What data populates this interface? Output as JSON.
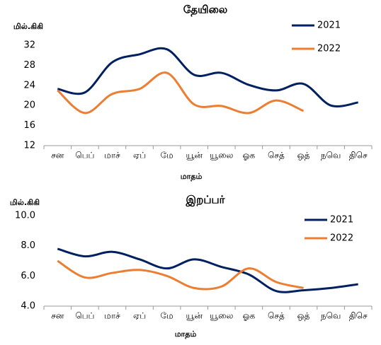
{
  "chart_data": [
    {
      "type": "line",
      "title": "தேயிலை",
      "y_label": "மில்.கிகி",
      "x_label": "மாதம்",
      "categories": [
        "சன",
        "பெப்",
        "மாச்",
        "ஏப்",
        "மே",
        "யூன்",
        "யூலை",
        "ஓக",
        "செத்",
        "ஒத்",
        "நவெ",
        "திசெ"
      ],
      "series": [
        {
          "name": "2021",
          "color": "#002060",
          "values": [
            23.3,
            22.6,
            28.6,
            30.2,
            31.2,
            26.1,
            26.5,
            24.1,
            23.0,
            24.3,
            20.0,
            20.6
          ]
        },
        {
          "name": "2022",
          "color": "#ed7d31",
          "values": [
            23.0,
            18.5,
            22.3,
            23.3,
            26.5,
            20.2,
            19.9,
            18.5,
            21.0,
            18.9,
            null,
            null
          ]
        }
      ],
      "ylim": [
        12,
        32
      ],
      "yticks": [
        12,
        16,
        20,
        24,
        28,
        32
      ],
      "grid": false,
      "legend": "top-right"
    },
    {
      "type": "line",
      "title": "இறப்பர்",
      "y_label": "மில்.கிகி",
      "x_label": "மாதம்",
      "categories": [
        "சன",
        "பெப்",
        "மாச்",
        "ஏப்",
        "மே",
        "யூன்",
        "யூலை",
        "ஓக",
        "செத்",
        "ஒத்",
        "நவெ",
        "திசெ"
      ],
      "series": [
        {
          "name": "2021",
          "color": "#002060",
          "values": [
            7.8,
            7.3,
            7.6,
            7.1,
            6.5,
            7.1,
            6.6,
            6.1,
            5.0,
            5.05,
            5.2,
            5.45
          ]
        },
        {
          "name": "2022",
          "color": "#ed7d31",
          "values": [
            7.0,
            5.9,
            6.2,
            6.4,
            6.0,
            5.2,
            5.3,
            6.5,
            5.6,
            5.2,
            null,
            null
          ]
        }
      ],
      "ylim": [
        4,
        10
      ],
      "yticks": [
        {
          "value": 4,
          "label": "4.0"
        },
        {
          "value": 6,
          "label": "6.0"
        },
        {
          "value": 8,
          "label": "8.0"
        },
        {
          "value": 10,
          "label": "10.0"
        }
      ],
      "grid": false,
      "legend": "top-right"
    }
  ]
}
